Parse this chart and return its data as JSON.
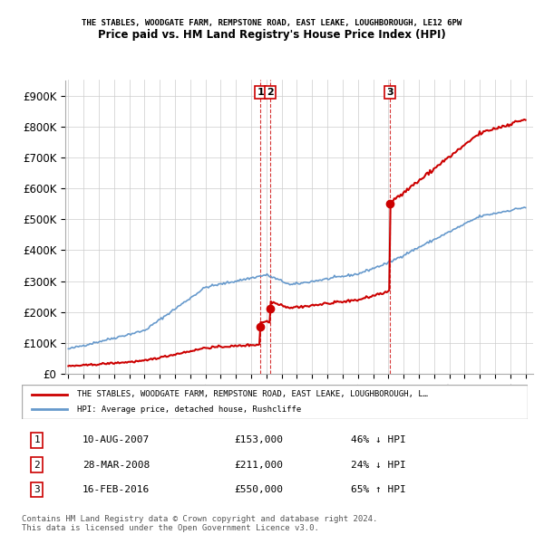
{
  "title": "THE STABLES, WOODGATE FARM, REMPSTONE ROAD, EAST LEAKE, LOUGHBOROUGH, LE12 6PW",
  "subtitle": "Price paid vs. HM Land Registry's House Price Index (HPI)",
  "ylabel": "",
  "xlabel": "",
  "xlim": [
    1995,
    2025.5
  ],
  "ylim": [
    0,
    950000
  ],
  "yticks": [
    0,
    100000,
    200000,
    300000,
    400000,
    500000,
    600000,
    700000,
    800000,
    900000
  ],
  "ytick_labels": [
    "£0",
    "£100K",
    "£200K",
    "£300K",
    "£400K",
    "£500K",
    "£600K",
    "£700K",
    "£800K",
    "£900K"
  ],
  "hpi_color": "#6699cc",
  "price_color": "#cc0000",
  "marker_color": "#cc0000",
  "vline_color": "#cc0000",
  "background_color": "#ffffff",
  "grid_color": "#cccccc",
  "transactions": [
    {
      "num": 1,
      "date": "10-AUG-2007",
      "year": 2007.6,
      "price": 153000,
      "pct": "46%",
      "dir": "↓",
      "label": "1"
    },
    {
      "num": 2,
      "date": "28-MAR-2008",
      "year": 2008.25,
      "price": 211000,
      "pct": "24%",
      "dir": "↓",
      "label": "2"
    },
    {
      "num": 3,
      "date": "16-FEB-2016",
      "year": 2016.12,
      "price": 550000,
      "pct": "65%",
      "dir": "↑",
      "label": "3"
    }
  ],
  "legend_red_label": "THE STABLES, WOODGATE FARM, REMPSTONE ROAD, EAST LEAKE, LOUGHBOROUGH, L…",
  "legend_blue_label": "HPI: Average price, detached house, Rushcliffe",
  "footer1": "Contains HM Land Registry data © Crown copyright and database right 2024.",
  "footer2": "This data is licensed under the Open Government Licence v3.0.",
  "table_rows": [
    {
      "num": "1",
      "date": "10-AUG-2007",
      "price": "£153,000",
      "hpi": "46% ↓ HPI"
    },
    {
      "num": "2",
      "date": "28-MAR-2008",
      "price": "£211,000",
      "hpi": "24% ↓ HPI"
    },
    {
      "num": "3",
      "date": "16-FEB-2016",
      "price": "£550,000",
      "hpi": "65% ↑ HPI"
    }
  ]
}
